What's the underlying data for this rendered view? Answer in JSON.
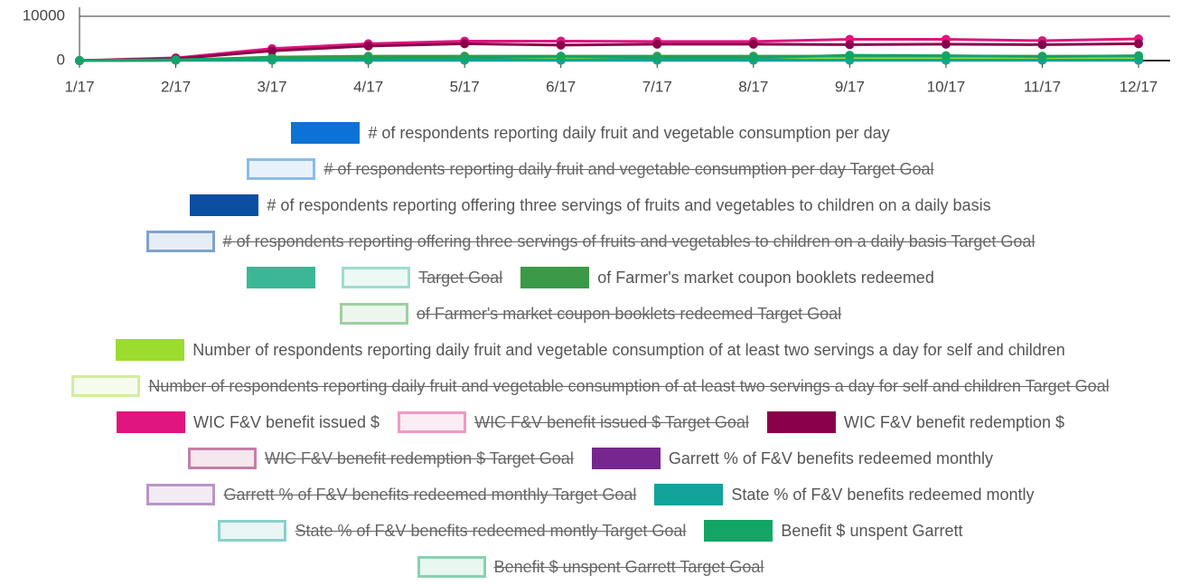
{
  "chart_data": {
    "type": "line",
    "categories": [
      "1/17",
      "2/17",
      "3/17",
      "4/17",
      "5/17",
      "6/17",
      "7/17",
      "8/17",
      "9/17",
      "10/17",
      "11/17",
      "12/17"
    ],
    "ylim": [
      0,
      10000
    ],
    "yticks": [
      0,
      10000
    ],
    "series": [
      {
        "name": "# of respondents reporting daily fruit and vegetable consumption per day",
        "color": "#0d72d6",
        "values": [
          0,
          200,
          500,
          600,
          600,
          600,
          600,
          600,
          600,
          600,
          600,
          600
        ]
      },
      {
        "name": "# of respondents reporting daily fruit and vegetable consumption per day Target Goal",
        "color": "#8bbbe8",
        "hidden": true
      },
      {
        "name": "# of respondents reporting offering three servings of  fruits and vegetables to children on a daily basis",
        "color": "#0b4fa0",
        "values": [
          0,
          150,
          400,
          500,
          500,
          500,
          500,
          500,
          500,
          500,
          500,
          500
        ]
      },
      {
        "name": "# of respondents reporting offering three servings of  fruits and vegetables to children on a daily basis Target Goal",
        "color": "#7fa2cc",
        "hidden": true
      },
      {
        "color": "#3bb796",
        "values": [
          0,
          100,
          300,
          400,
          400,
          400,
          400,
          400,
          400,
          400,
          400,
          400
        ]
      },
      {
        "name": "Target Goal",
        "color": "#9dddcc",
        "hidden": true
      },
      {
        "name": "of Farmer's market coupon booklets redeemed",
        "color": "#3a9a48",
        "values": [
          0,
          100,
          800,
          1000,
          1000,
          1000,
          1000,
          1000,
          1000,
          1000,
          1000,
          1000
        ]
      },
      {
        "name": "of Farmer's market coupon booklets redeemed Target Goal",
        "color": "#9dcfa1",
        "hidden": true
      },
      {
        "name": "Number of respondents reporting daily fruit and vegetable consumption of at least two servings a day for self and children",
        "color": "#9bdc2f",
        "values": [
          0,
          100,
          300,
          400,
          400,
          400,
          400,
          400,
          400,
          400,
          400,
          400
        ]
      },
      {
        "name": "Number of respondents reporting daily fruit and vegetable consumption of at least two servings a day for self and children Target Goal",
        "color": "#cfeea0",
        "hidden": true
      },
      {
        "name": "WIC F&V benefit issued $",
        "color": "#e0157f",
        "values": [
          0,
          600,
          2700,
          3800,
          4400,
          4400,
          4300,
          4300,
          4800,
          4800,
          4500,
          4900
        ]
      },
      {
        "name": "WIC F&V benefit issued $ Target Goal",
        "color": "#f09ac3",
        "hidden": true
      },
      {
        "name": "WIC F&V benefit redemption $",
        "color": "#8b004b",
        "values": [
          0,
          400,
          2200,
          3300,
          3800,
          3500,
          3700,
          3700,
          3600,
          3700,
          3600,
          3800
        ]
      },
      {
        "name": "WIC F&V benefit redemption $ Target Goal",
        "color": "#c57fa5",
        "hidden": true
      },
      {
        "name": "Garrett % of F&V benefits redeemed monthly",
        "color": "#76278f",
        "values": [
          0,
          80,
          80,
          85,
          85,
          80,
          85,
          85,
          75,
          80,
          80,
          78
        ]
      },
      {
        "name": "Garrett % of F&V benefits redeemed monthly Target Goal",
        "color": "#b996c6",
        "hidden": true
      },
      {
        "name": "State % of F&V benefits redeemed montly",
        "color": "#12a39b",
        "values": [
          0,
          80,
          80,
          80,
          80,
          80,
          80,
          80,
          80,
          80,
          80,
          80
        ]
      },
      {
        "name": "State % of F&V benefits redeemed montly Target Goal",
        "color": "#88d0cc",
        "hidden": true
      },
      {
        "name": "Benefit $ unspent Garrett",
        "color": "#12a565",
        "values": [
          0,
          200,
          500,
          500,
          600,
          900,
          600,
          600,
          1200,
          1100,
          900,
          1100
        ]
      },
      {
        "name": "Benefit $ unspent Garrett Target Goal",
        "color": "#88d2b0",
        "hidden": true
      }
    ]
  }
}
